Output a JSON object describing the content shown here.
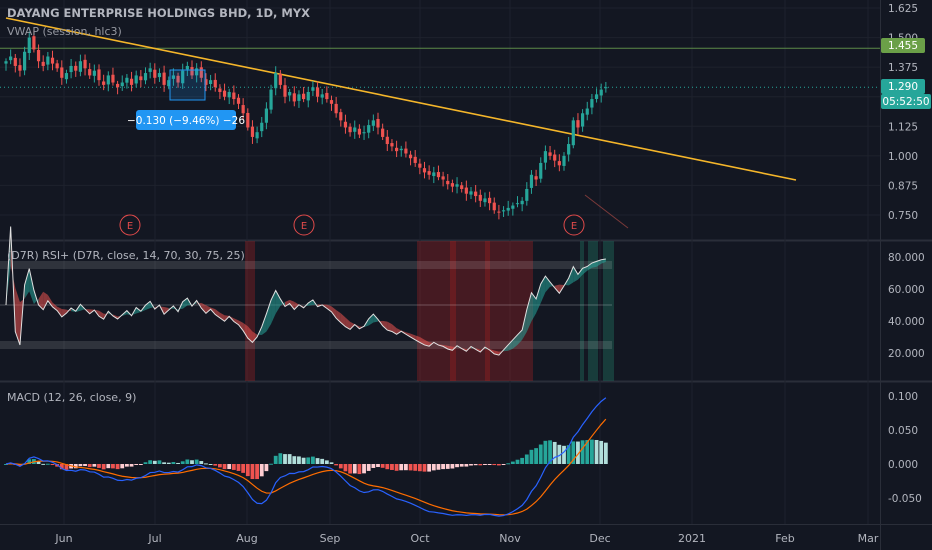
{
  "header": {
    "title": "DAYANG ENTERPRISE HOLDINGS BHD, 1D, MYX",
    "vwap_label": "VWAP (session, hlc3)"
  },
  "colors": {
    "background": "#131722",
    "up": "#26a69a",
    "down": "#ef5350",
    "trendline": "#f5b62a",
    "resistance": "#5c8a48",
    "rsi_line": "#e0e0e0",
    "macd_line": "#2962ff",
    "signal_line": "#ff6d00",
    "measure": "#2196f3"
  },
  "measure_badge": "−0.130 (−9.46%) −26",
  "price_labels": {
    "resistance": "1.455",
    "current": "1.290",
    "countdown": "05:52:50"
  },
  "earnings_marker": "E",
  "chart_data": [
    {
      "type": "candlestick",
      "panel": "price",
      "x_unit": "trading days from late May 2020 to early December 2020",
      "x_ticks": [
        "Jun",
        "Jul",
        "Aug",
        "Sep",
        "Oct",
        "Nov",
        "Dec",
        "2021",
        "Feb",
        "Mar"
      ],
      "y_ticks": [
        "0.750",
        "0.875",
        "1.000",
        "1.125",
        "1.250",
        "1.375",
        "1.500",
        "1.625"
      ],
      "ylim": [
        0.69,
        1.66
      ],
      "close": [
        1.4,
        1.42,
        1.38,
        1.36,
        1.44,
        1.5,
        1.45,
        1.4,
        1.38,
        1.42,
        1.39,
        1.37,
        1.33,
        1.35,
        1.38,
        1.36,
        1.4,
        1.37,
        1.34,
        1.36,
        1.32,
        1.3,
        1.34,
        1.31,
        1.29,
        1.31,
        1.33,
        1.3,
        1.34,
        1.32,
        1.35,
        1.37,
        1.33,
        1.35,
        1.3,
        1.32,
        1.34,
        1.31,
        1.36,
        1.38,
        1.34,
        1.37,
        1.33,
        1.3,
        1.32,
        1.29,
        1.27,
        1.25,
        1.27,
        1.24,
        1.22,
        1.18,
        1.12,
        1.08,
        1.1,
        1.14,
        1.2,
        1.28,
        1.35,
        1.3,
        1.25,
        1.27,
        1.23,
        1.26,
        1.24,
        1.27,
        1.29,
        1.25,
        1.26,
        1.24,
        1.22,
        1.18,
        1.15,
        1.12,
        1.1,
        1.12,
        1.09,
        1.1,
        1.13,
        1.15,
        1.12,
        1.08,
        1.05,
        1.04,
        1.02,
        1.03,
        1.01,
        0.99,
        0.97,
        0.95,
        0.93,
        0.92,
        0.93,
        0.91,
        0.9,
        0.88,
        0.87,
        0.88,
        0.86,
        0.84,
        0.85,
        0.83,
        0.81,
        0.82,
        0.8,
        0.77,
        0.76,
        0.77,
        0.78,
        0.79,
        0.8,
        0.81,
        0.86,
        0.92,
        0.9,
        0.97,
        1.02,
        1.0,
        0.98,
        0.96,
        1.0,
        1.05,
        1.15,
        1.12,
        1.18,
        1.2,
        1.24,
        1.26,
        1.28,
        1.29
      ]
    },
    {
      "type": "line",
      "panel": "rsi",
      "label": "(D7R) RSI+ (D7R, close, 14, 70, 30, 75, 25)",
      "y_ticks": [
        "20.000",
        "40.000",
        "60.000",
        "80.000"
      ],
      "ylim": [
        5,
        90
      ],
      "levels": [
        75,
        50,
        25
      ]
    },
    {
      "type": "bar+line",
      "panel": "macd",
      "label": "MACD (12, 26, close, 9)",
      "y_ticks": [
        "-0.050",
        "0.000",
        "0.050",
        "0.100"
      ],
      "ylim": [
        -0.085,
        0.105
      ]
    }
  ]
}
